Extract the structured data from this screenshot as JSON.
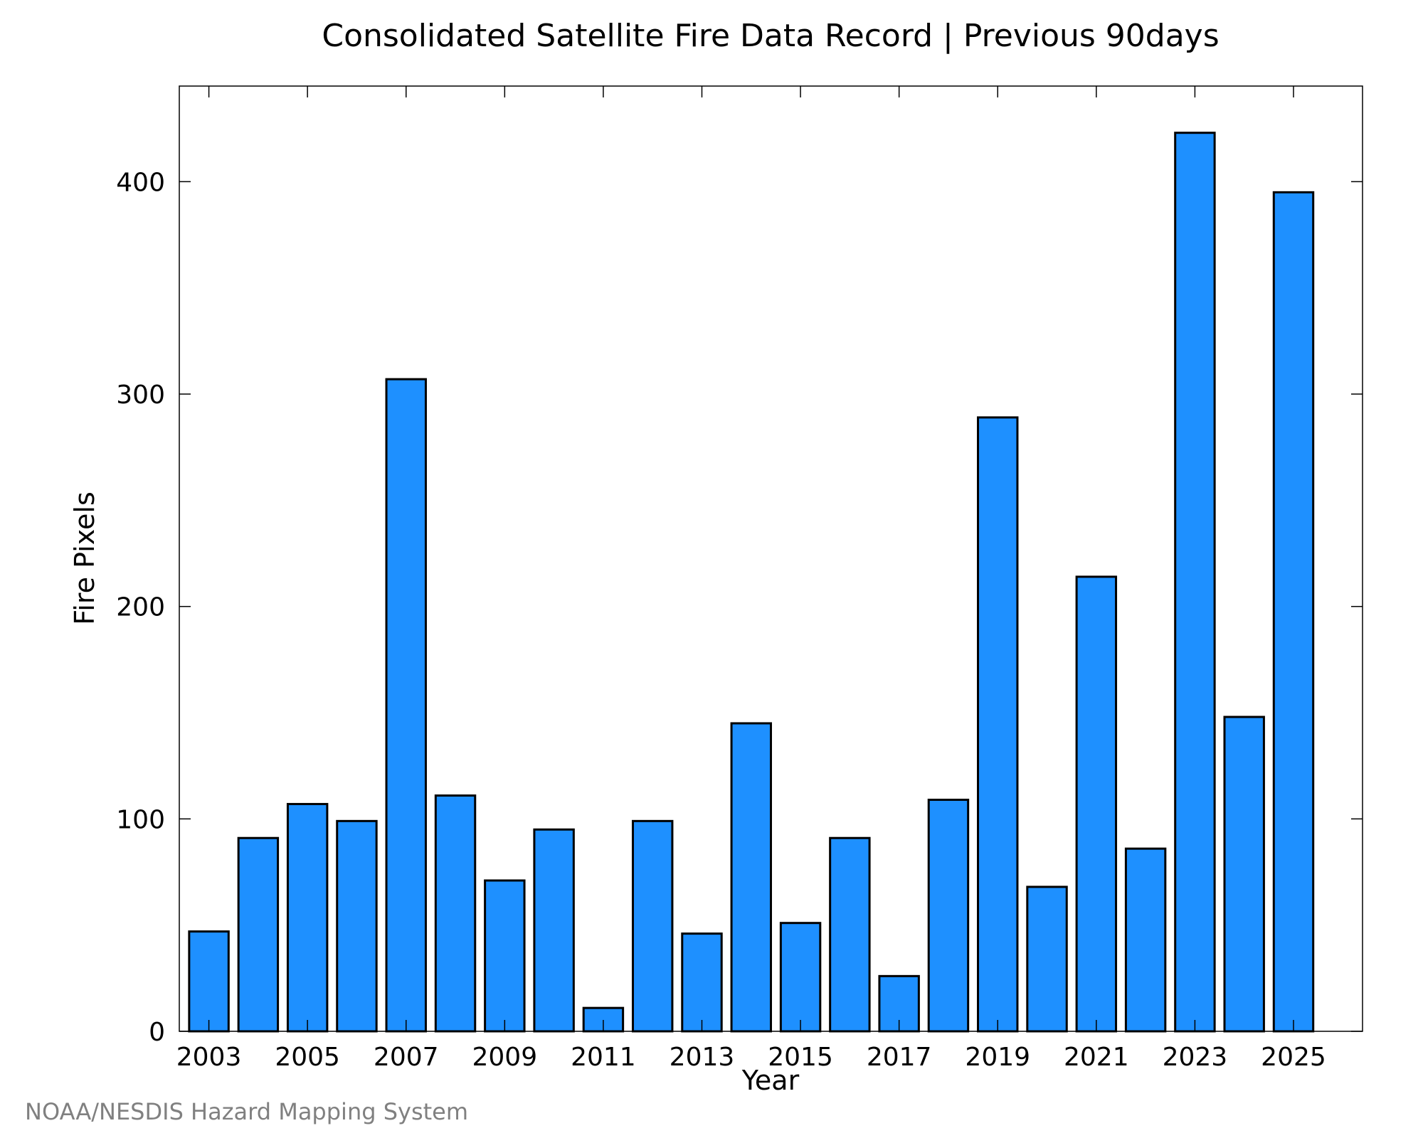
{
  "chart_data": {
    "type": "bar",
    "title": "Consolidated Satellite Fire Data Record | Previous 90days",
    "xlabel": "Year",
    "ylabel": "Fire Pixels",
    "credit": "NOAA/NESDIS Hazard Mapping System",
    "categories": [
      "2003",
      "2004",
      "2005",
      "2006",
      "2007",
      "2008",
      "2009",
      "2010",
      "2011",
      "2012",
      "2013",
      "2014",
      "2015",
      "2016",
      "2017",
      "2018",
      "2019",
      "2020",
      "2021",
      "2022",
      "2023",
      "2024",
      "2025"
    ],
    "values": [
      47,
      91,
      107,
      99,
      307,
      111,
      71,
      95,
      11,
      99,
      46,
      145,
      51,
      91,
      26,
      109,
      289,
      68,
      214,
      86,
      423,
      148,
      395
    ],
    "x_tick_labels": [
      "2003",
      "2005",
      "2007",
      "2009",
      "2011",
      "2013",
      "2015",
      "2017",
      "2019",
      "2021",
      "2023",
      "2025"
    ],
    "y_ticks": [
      0,
      100,
      200,
      300,
      400
    ],
    "ylim": [
      0,
      445
    ],
    "xlim": [
      2002.4,
      2026.4
    ],
    "bar_color": "#1e90ff",
    "grid": false
  }
}
